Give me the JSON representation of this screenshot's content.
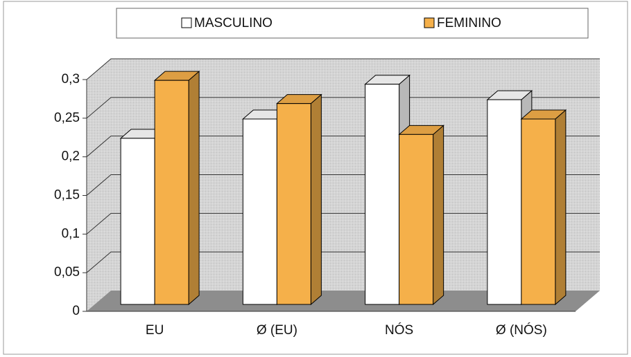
{
  "chart_data": {
    "type": "bar3d",
    "categories": [
      "EU",
      "Ø (EU)",
      "NÓS",
      "Ø (NÓS)"
    ],
    "series": [
      {
        "name": "MASCULINO",
        "color": "#ffffff",
        "values": [
          0.215,
          0.24,
          0.285,
          0.265
        ]
      },
      {
        "name": "FEMININO",
        "color": "#f5b04a",
        "values": [
          0.29,
          0.26,
          0.22,
          0.24
        ]
      }
    ],
    "ylim": [
      0,
      0.3
    ],
    "yticks": [
      0,
      {
        "value": 0.05,
        "label": "0,05"
      },
      {
        "value": 0.1,
        "label": "0,1"
      },
      {
        "value": 0.15,
        "label": "0,15"
      },
      {
        "value": 0.2,
        "label": "0,2"
      },
      {
        "value": 0.25,
        "label": "0,25"
      },
      {
        "value": 0.3,
        "label": "0,3"
      }
    ],
    "grid": true,
    "legend": "top"
  }
}
